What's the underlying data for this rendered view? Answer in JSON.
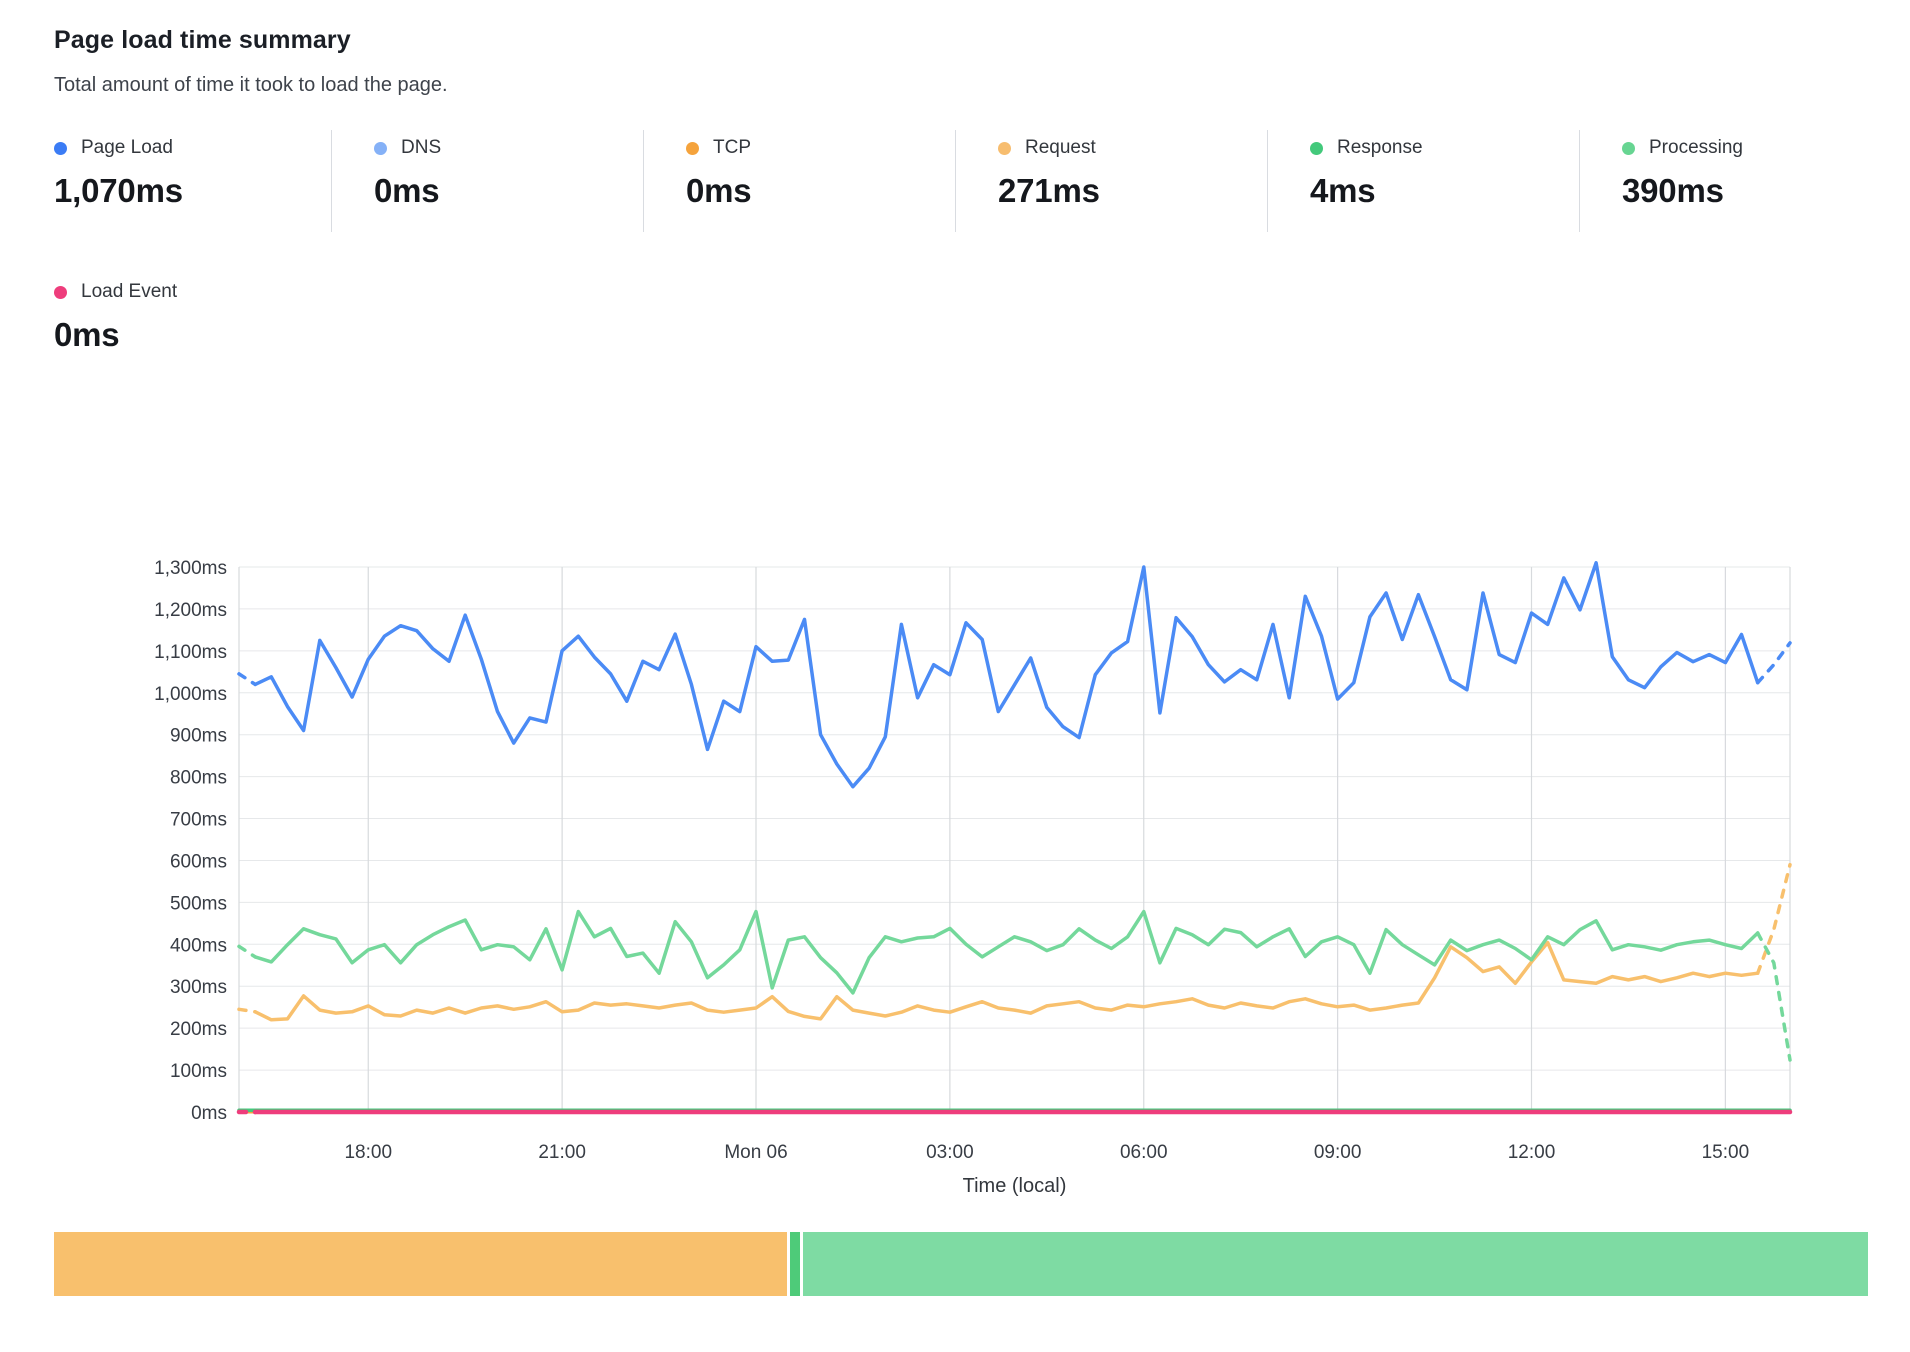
{
  "header": {
    "title": "Page load time summary",
    "subtitle": "Total amount of time it took to load the page."
  },
  "legend": {
    "items": [
      {
        "label": "Page Load",
        "value": "1,070ms",
        "color": "#3b7cf5"
      },
      {
        "label": "DNS",
        "value": "0ms",
        "color": "#85b1f7"
      },
      {
        "label": "TCP",
        "value": "0ms",
        "color": "#f5a33c"
      },
      {
        "label": "Request",
        "value": "271ms",
        "color": "#f7bd6f"
      },
      {
        "label": "Response",
        "value": "4ms",
        "color": "#43c97b"
      },
      {
        "label": "Processing",
        "value": "390ms",
        "color": "#67d592"
      },
      {
        "label": "Load Event",
        "value": "0ms",
        "color": "#ee3d7c"
      }
    ]
  },
  "bar": {
    "segments": [
      {
        "name": "request-share",
        "color": "#f8c06d",
        "width": "40.4%"
      },
      {
        "name": "response-share",
        "color": "#4ecb79",
        "width": "0.55%"
      },
      {
        "name": "processing-share",
        "color": "#7edba3",
        "width": "58.6%"
      }
    ]
  },
  "chart_data": {
    "type": "line",
    "title": "Page load time summary",
    "xlabel": "Time (local)",
    "ylabel": "milliseconds",
    "ylim": [
      0,
      1318
    ],
    "grid": true,
    "n_points": 97,
    "point_interval_minutes": 15,
    "x_ticks": [
      {
        "i": 8,
        "label": "18:00"
      },
      {
        "i": 20,
        "label": "21:00"
      },
      {
        "i": 32,
        "label": "Mon 06"
      },
      {
        "i": 44,
        "label": "03:00"
      },
      {
        "i": 56,
        "label": "06:00"
      },
      {
        "i": 68,
        "label": "09:00"
      },
      {
        "i": 80,
        "label": "12:00"
      },
      {
        "i": 92,
        "label": "15:00"
      }
    ],
    "y_ticks": [
      {
        "v": 0,
        "label": "0ms"
      },
      {
        "v": 100,
        "label": "100ms"
      },
      {
        "v": 200,
        "label": "200ms"
      },
      {
        "v": 300,
        "label": "300ms"
      },
      {
        "v": 400,
        "label": "400ms"
      },
      {
        "v": 500,
        "label": "500ms"
      },
      {
        "v": 600,
        "label": "600ms"
      },
      {
        "v": 700,
        "label": "700ms"
      },
      {
        "v": 800,
        "label": "800ms"
      },
      {
        "v": 900,
        "label": "900ms"
      },
      {
        "v": 1000,
        "label": "1,000ms"
      },
      {
        "v": 1100,
        "label": "1,100ms"
      },
      {
        "v": 1200,
        "label": "1,200ms"
      },
      {
        "v": 1300,
        "label": "1,300ms"
      }
    ],
    "series": [
      {
        "name": "Request",
        "color": "#f8c06d",
        "width": 3.5,
        "dash_head": 1,
        "dash_tail": 2,
        "values": [
          245,
          239,
          220,
          222,
          277,
          243,
          236,
          239,
          253,
          232,
          229,
          243,
          236,
          248,
          236,
          248,
          253,
          245,
          251,
          263,
          239,
          243,
          260,
          255,
          258,
          253,
          248,
          255,
          260,
          243,
          238,
          243,
          248,
          275,
          240,
          228,
          222,
          275,
          243,
          236,
          229,
          238,
          253,
          243,
          238,
          251,
          263,
          248,
          243,
          236,
          253,
          258,
          263,
          248,
          243,
          255,
          251,
          258,
          263,
          270,
          255,
          248,
          260,
          253,
          248,
          263,
          270,
          258,
          251,
          255,
          243,
          248,
          255,
          260,
          320,
          394,
          368,
          335,
          346,
          307,
          358,
          404,
          315,
          311,
          307,
          323,
          315,
          323,
          311,
          320,
          331,
          323,
          331,
          326,
          331,
          435,
          590
        ]
      },
      {
        "name": "Processing",
        "color": "#74d89b",
        "width": 3.5,
        "dash_head": 1,
        "dash_tail": 2,
        "values": [
          395,
          370,
          358,
          399,
          437,
          423,
          413,
          356,
          387,
          399,
          356,
          399,
          423,
          442,
          458,
          387,
          399,
          394,
          363,
          437,
          339,
          478,
          418,
          438,
          371,
          379,
          331,
          454,
          406,
          320,
          351,
          387,
          478,
          296,
          410,
          418,
          368,
          332,
          284,
          368,
          418,
          406,
          415,
          418,
          438,
          400,
          370,
          394,
          418,
          406,
          385,
          399,
          437,
          410,
          390,
          418,
          478,
          356,
          438,
          423,
          399,
          436,
          428,
          394,
          418,
          437,
          371,
          406,
          418,
          399,
          331,
          435,
          399,
          375,
          351,
          410,
          385,
          399,
          410,
          390,
          363,
          418,
          399,
          435,
          456,
          387,
          399,
          394,
          386,
          399,
          406,
          410,
          399,
          390,
          427,
          356,
          124
        ]
      },
      {
        "name": "Page Load",
        "color": "#4b8bf5",
        "width": 3.5,
        "dash_head": 1,
        "dash_tail": 2,
        "values": [
          1045,
          1020,
          1038,
          967,
          910,
          1125,
          1060,
          990,
          1080,
          1135,
          1160,
          1148,
          1105,
          1075,
          1185,
          1080,
          955,
          880,
          940,
          930,
          1100,
          1135,
          1085,
          1045,
          980,
          1075,
          1055,
          1140,
          1020,
          865,
          980,
          955,
          1110,
          1075,
          1078,
          1175,
          900,
          830,
          776,
          820,
          895,
          1163,
          988,
          1067,
          1043,
          1167,
          1127,
          955,
          1019,
          1083,
          965,
          919,
          893,
          1043,
          1095,
          1122,
          1300,
          952,
          1179,
          1134,
          1067,
          1026,
          1055,
          1031,
          1163,
          988,
          1230,
          1135,
          985,
          1024,
          1181,
          1238,
          1127,
          1234,
          1134,
          1031,
          1007,
          1238,
          1091,
          1072,
          1190,
          1163,
          1274,
          1198,
          1310,
          1086,
          1031,
          1012,
          1062,
          1096,
          1074,
          1091,
          1072,
          1139,
          1024,
          1067,
          1119
        ]
      },
      {
        "name": "DNS",
        "color": "#85b1f7",
        "width": 3,
        "constant": 0
      },
      {
        "name": "TCP",
        "color": "#f5a33c",
        "width": 3,
        "constant": 0
      },
      {
        "name": "Response",
        "color": "#43c97b",
        "width": 3.5,
        "constant": 4
      },
      {
        "name": "Load Event",
        "color": "#ee3d7c",
        "width": 4.5,
        "dash_head": 1,
        "constant": 0
      }
    ]
  }
}
